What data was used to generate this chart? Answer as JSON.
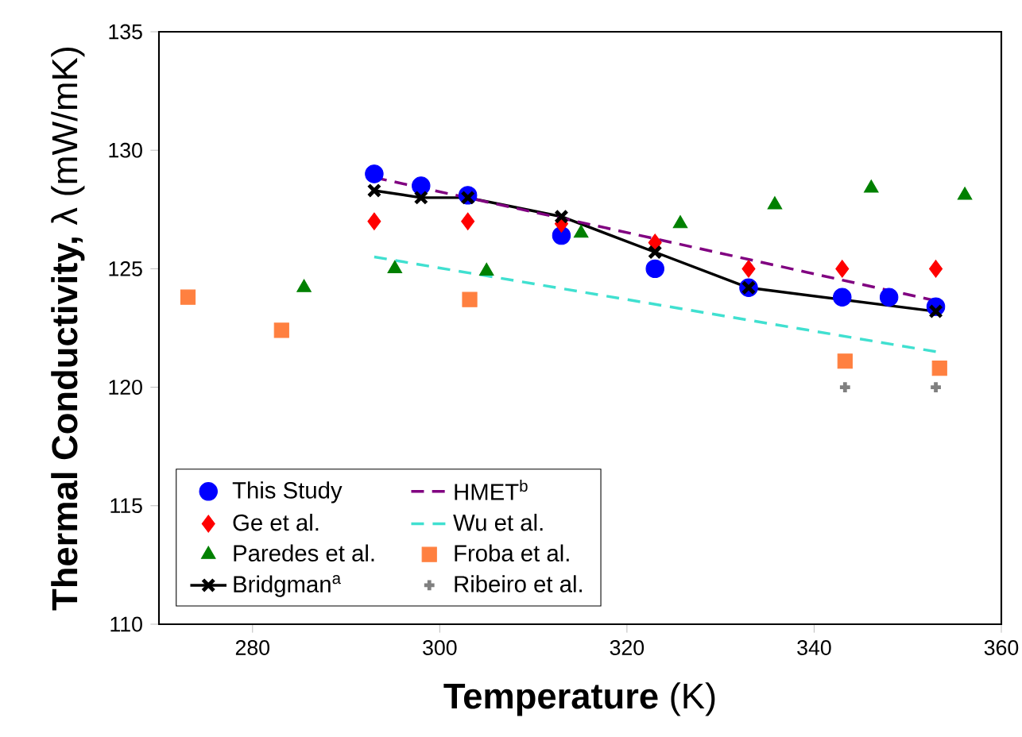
{
  "chart_data": {
    "type": "scatter",
    "xlabel": "**Temperature** (K)",
    "ylabel": "**Thermal Conductivity,** λ (mW/mK)",
    "xlim": [
      270,
      360
    ],
    "xticks": [
      280,
      300,
      320,
      340,
      360
    ],
    "ylim": [
      110,
      135
    ],
    "yticks": [
      110,
      115,
      120,
      125,
      130,
      135
    ],
    "grid": false,
    "legend": "bottom left",
    "series": [
      {
        "name": "This Study",
        "marker": "circle",
        "color": "#0000ff",
        "x": [
          293,
          298,
          303,
          313,
          323,
          333,
          343,
          348,
          353
        ],
        "values": [
          129.0,
          128.5,
          128.1,
          126.4,
          125.0,
          124.2,
          123.8,
          123.8,
          123.4
        ]
      },
      {
        "name": "Ge et al.",
        "marker": "diamond",
        "color": "#ff0000",
        "x": [
          293,
          303,
          313,
          323,
          333,
          343,
          353
        ],
        "values": [
          127.0,
          127.0,
          126.9,
          126.1,
          125.0,
          125.0,
          125.0
        ]
      },
      {
        "name": "Paredes et al.",
        "marker": "triangle",
        "color": "#008000",
        "x": [
          285.5,
          295.2,
          305,
          315.1,
          325.7,
          335.8,
          346.1,
          356.1
        ],
        "values": [
          124.2,
          125.0,
          124.9,
          126.5,
          126.9,
          127.7,
          128.4,
          128.1
        ]
      },
      {
        "name": "Bridgman$^{a}$",
        "type": "line",
        "marker": "cross",
        "line_style": "solid",
        "color": "#000000",
        "x": [
          293,
          298,
          303,
          313,
          323,
          333,
          353
        ],
        "values": [
          128.3,
          128.0,
          128.0,
          127.2,
          125.7,
          124.2,
          123.2
        ]
      },
      {
        "name": "HMET$^{b}$",
        "type": "line",
        "marker": "none",
        "line_style": "dashed",
        "color": "#800080",
        "x": [
          293,
          314,
          353
        ],
        "values": [
          128.85,
          127.05,
          123.65
        ]
      },
      {
        "name": "Wu et al.",
        "type": "line",
        "marker": "none",
        "line_style": "dashed",
        "color": "#40e0d0",
        "x": [
          293,
          353
        ],
        "values": [
          125.5,
          121.5
        ]
      },
      {
        "name": "Froba et al.",
        "marker": "square",
        "color": "#ff8040",
        "x": [
          273.1,
          283.1,
          303.2,
          343.3,
          353.4
        ],
        "values": [
          123.8,
          122.4,
          123.7,
          121.1,
          120.8
        ]
      },
      {
        "name": "Ribeiro et al.",
        "marker": "plus",
        "color": "#808080",
        "x": [
          343.3,
          353
        ],
        "values": [
          120.0,
          120.0
        ]
      }
    ]
  }
}
